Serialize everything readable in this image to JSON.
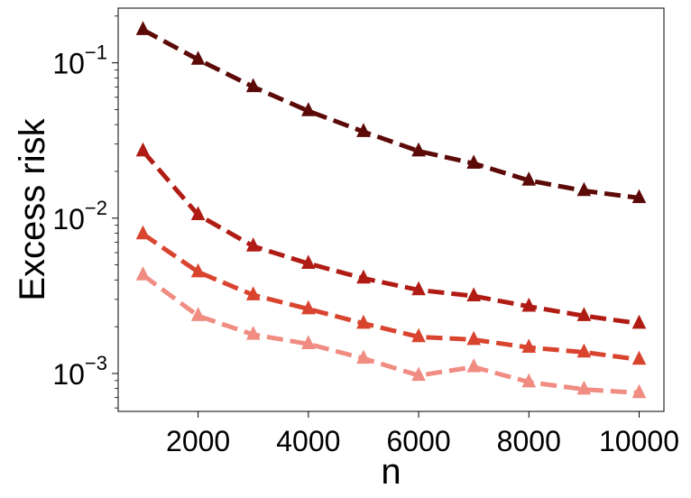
{
  "chart_data": {
    "type": "line",
    "title": "",
    "xlabel": "n",
    "ylabel": "Excess risk",
    "yscale": "log",
    "xlim": [
      550,
      10450
    ],
    "ylim": [
      0.00057,
      0.225
    ],
    "grid": false,
    "legend": "none",
    "x": [
      1000,
      2000,
      3000,
      4000,
      5000,
      6000,
      7000,
      8000,
      9000,
      10000
    ],
    "xticks": [
      2000,
      4000,
      6000,
      8000,
      10000
    ],
    "xtick_labels": [
      "2000",
      "4000",
      "6000",
      "8000",
      "10000"
    ],
    "yticks": [
      {
        "value": 0.1,
        "base": "10",
        "exp": "−1"
      },
      {
        "value": 0.01,
        "base": "10",
        "exp": "−2"
      },
      {
        "value": 0.001,
        "base": "10",
        "exp": "−3"
      }
    ],
    "line_style": "dashed",
    "marker": "triangle",
    "series": [
      {
        "color": "#5c0a08",
        "values": [
          0.163,
          0.105,
          0.07,
          0.049,
          0.036,
          0.027,
          0.0225,
          0.0175,
          0.015,
          0.0135
        ]
      },
      {
        "color": "#b01c14",
        "values": [
          0.027,
          0.0105,
          0.0066,
          0.0051,
          0.0041,
          0.00345,
          0.00315,
          0.0027,
          0.00235,
          0.0021
        ]
      },
      {
        "color": "#d9442f",
        "values": [
          0.0079,
          0.0045,
          0.0032,
          0.0026,
          0.0021,
          0.00172,
          0.00165,
          0.00147,
          0.00137,
          0.00123
        ]
      },
      {
        "color": "#f08c82",
        "values": [
          0.0043,
          0.00235,
          0.00178,
          0.00155,
          0.00125,
          0.00097,
          0.0011,
          0.00088,
          0.00079,
          0.00075
        ]
      }
    ]
  }
}
